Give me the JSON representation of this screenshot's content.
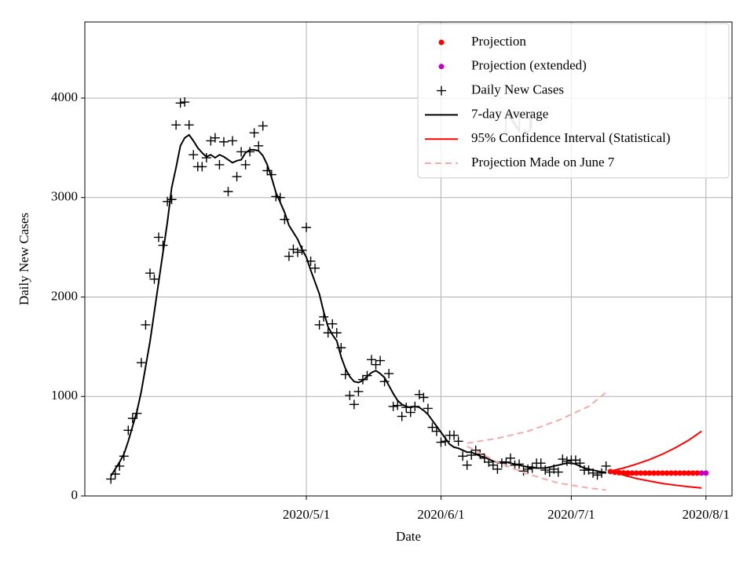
{
  "chart_data": {
    "type": "scatter",
    "xlabel": "Date",
    "ylabel": "Daily New Cases",
    "annotation": "NJ",
    "xlim": [
      "2020/3/11",
      "2020/8/7"
    ],
    "ylim": [
      0,
      4765
    ],
    "xticks": [
      "2020/5/1",
      "2020/6/1",
      "2020/7/1",
      "2020/8/1"
    ],
    "yticks": [
      0,
      1000,
      2000,
      3000,
      4000
    ],
    "grid": true,
    "legend": "upper right",
    "series": [
      {
        "name": "Projection",
        "color": "#ff0000",
        "marker": "o",
        "linestyle": "none",
        "x": [
          "2020/7/10",
          "2020/7/11",
          "2020/7/12",
          "2020/7/13",
          "2020/7/14",
          "2020/7/15",
          "2020/7/16",
          "2020/7/17",
          "2020/7/18",
          "2020/7/19",
          "2020/7/20",
          "2020/7/21",
          "2020/7/22",
          "2020/7/23",
          "2020/7/24",
          "2020/7/25",
          "2020/7/26",
          "2020/7/27",
          "2020/7/28",
          "2020/7/29",
          "2020/7/30"
        ],
        "values": [
          245,
          238,
          234,
          232,
          231,
          230,
          230,
          230,
          230,
          230,
          230,
          230,
          230,
          230,
          230,
          230,
          230,
          230,
          230,
          230,
          230
        ]
      },
      {
        "name": "Projection (extended)",
        "color": "#bf00bf",
        "marker": "o",
        "linestyle": "none",
        "x": [
          "2020/7/31",
          "2020/8/1"
        ],
        "values": [
          230,
          230
        ]
      },
      {
        "name": "Daily New Cases",
        "color": "#000000",
        "marker": "+",
        "linestyle": "none",
        "x": [
          "2020/3/17",
          "2020/3/18",
          "2020/3/19",
          "2020/3/20",
          "2020/3/21",
          "2020/3/22",
          "2020/3/23",
          "2020/3/24",
          "2020/3/25",
          "2020/3/26",
          "2020/3/27",
          "2020/3/28",
          "2020/3/29",
          "2020/3/30",
          "2020/3/31",
          "2020/4/1",
          "2020/4/2",
          "2020/4/3",
          "2020/4/4",
          "2020/4/5",
          "2020/4/6",
          "2020/4/7",
          "2020/4/8",
          "2020/4/9",
          "2020/4/10",
          "2020/4/11",
          "2020/4/12",
          "2020/4/13",
          "2020/4/14",
          "2020/4/15",
          "2020/4/16",
          "2020/4/17",
          "2020/4/18",
          "2020/4/19",
          "2020/4/20",
          "2020/4/21",
          "2020/4/22",
          "2020/4/23",
          "2020/4/24",
          "2020/4/25",
          "2020/4/26",
          "2020/4/27",
          "2020/4/28",
          "2020/4/29",
          "2020/4/30",
          "2020/5/1",
          "2020/5/2",
          "2020/5/3",
          "2020/5/4",
          "2020/5/5",
          "2020/5/6",
          "2020/5/7",
          "2020/5/8",
          "2020/5/9",
          "2020/5/10",
          "2020/5/11",
          "2020/5/12",
          "2020/5/13",
          "2020/5/14",
          "2020/5/15",
          "2020/5/16",
          "2020/5/17",
          "2020/5/18",
          "2020/5/19",
          "2020/5/20",
          "2020/5/21",
          "2020/5/22",
          "2020/5/23",
          "2020/5/24",
          "2020/5/25",
          "2020/5/26",
          "2020/5/27",
          "2020/5/28",
          "2020/5/29",
          "2020/5/30",
          "2020/5/31",
          "2020/6/1",
          "2020/6/2",
          "2020/6/3",
          "2020/6/4",
          "2020/6/5",
          "2020/6/6",
          "2020/6/7",
          "2020/6/8",
          "2020/6/9",
          "2020/6/10",
          "2020/6/11",
          "2020/6/12",
          "2020/6/13",
          "2020/6/14",
          "2020/6/15",
          "2020/6/16",
          "2020/6/17",
          "2020/6/18",
          "2020/6/19",
          "2020/6/20",
          "2020/6/21",
          "2020/6/22",
          "2020/6/23",
          "2020/6/24",
          "2020/6/25",
          "2020/6/26",
          "2020/6/27",
          "2020/6/28",
          "2020/6/29",
          "2020/6/30",
          "2020/7/1",
          "2020/7/2",
          "2020/7/3",
          "2020/7/4",
          "2020/7/5",
          "2020/7/6",
          "2020/7/7",
          "2020/7/8",
          "2020/7/9"
        ],
        "values": [
          170,
          220,
          300,
          400,
          660,
          780,
          830,
          1340,
          1720,
          2240,
          2180,
          2600,
          2520,
          2960,
          2980,
          3730,
          3950,
          3960,
          3730,
          3430,
          3310,
          3310,
          3400,
          3570,
          3600,
          3330,
          3560,
          3060,
          3570,
          3210,
          3460,
          3330,
          3460,
          3650,
          3520,
          3720,
          3270,
          3230,
          3010,
          3000,
          2780,
          2410,
          2480,
          2450,
          2470,
          2700,
          2360,
          2290,
          1720,
          1800,
          1640,
          1730,
          1640,
          1490,
          1220,
          1010,
          920,
          1050,
          1170,
          1210,
          1370,
          1320,
          1360,
          1150,
          1230,
          900,
          910,
          800,
          890,
          840,
          900,
          1020,
          990,
          880,
          690,
          650,
          540,
          550,
          610,
          610,
          550,
          400,
          310,
          410,
          460,
          420,
          380,
          340,
          310,
          270,
          330,
          340,
          380,
          310,
          320,
          250,
          270,
          280,
          330,
          330,
          260,
          240,
          270,
          240,
          370,
          350,
          360,
          360,
          330,
          260,
          260,
          230,
          210,
          230,
          300
        ]
      },
      {
        "name": "7-day Average",
        "color": "#000000",
        "marker": "none",
        "linestyle": "-",
        "x": [
          "2020/3/17",
          "2020/3/18",
          "2020/3/19",
          "2020/3/20",
          "2020/3/21",
          "2020/3/22",
          "2020/3/23",
          "2020/3/24",
          "2020/3/25",
          "2020/3/26",
          "2020/3/27",
          "2020/3/28",
          "2020/3/29",
          "2020/3/30",
          "2020/3/31",
          "2020/4/1",
          "2020/4/2",
          "2020/4/3",
          "2020/4/4",
          "2020/4/5",
          "2020/4/6",
          "2020/4/7",
          "2020/4/8",
          "2020/4/9",
          "2020/4/10",
          "2020/4/11",
          "2020/4/12",
          "2020/4/13",
          "2020/4/14",
          "2020/4/15",
          "2020/4/16",
          "2020/4/17",
          "2020/4/18",
          "2020/4/19",
          "2020/4/20",
          "2020/4/21",
          "2020/4/22",
          "2020/4/23",
          "2020/4/24",
          "2020/4/25",
          "2020/4/26",
          "2020/4/27",
          "2020/4/28",
          "2020/4/29",
          "2020/4/30",
          "2020/5/1",
          "2020/5/2",
          "2020/5/3",
          "2020/5/4",
          "2020/5/5",
          "2020/5/6",
          "2020/5/7",
          "2020/5/8",
          "2020/5/9",
          "2020/5/10",
          "2020/5/11",
          "2020/5/12",
          "2020/5/13",
          "2020/5/14",
          "2020/5/15",
          "2020/5/16",
          "2020/5/17",
          "2020/5/18",
          "2020/5/19",
          "2020/5/20",
          "2020/5/21",
          "2020/5/22",
          "2020/5/23",
          "2020/5/24",
          "2020/5/25",
          "2020/5/26",
          "2020/5/27",
          "2020/5/28",
          "2020/5/29",
          "2020/5/30",
          "2020/5/31",
          "2020/6/1",
          "2020/6/2",
          "2020/6/3",
          "2020/6/4",
          "2020/6/5",
          "2020/6/6",
          "2020/6/7",
          "2020/6/8",
          "2020/6/9",
          "2020/6/10",
          "2020/6/11",
          "2020/6/12",
          "2020/6/13",
          "2020/6/14",
          "2020/6/15",
          "2020/6/16",
          "2020/6/17",
          "2020/6/18",
          "2020/6/19",
          "2020/6/20",
          "2020/6/21",
          "2020/6/22",
          "2020/6/23",
          "2020/6/24",
          "2020/6/25",
          "2020/6/26",
          "2020/6/27",
          "2020/6/28",
          "2020/6/29",
          "2020/6/30",
          "2020/7/1",
          "2020/7/2",
          "2020/7/3",
          "2020/7/4",
          "2020/7/5",
          "2020/7/6",
          "2020/7/7",
          "2020/7/8",
          "2020/7/9"
        ],
        "values": [
          200,
          270,
          340,
          420,
          550,
          700,
          850,
          1050,
          1300,
          1550,
          1850,
          2150,
          2450,
          2750,
          3100,
          3300,
          3520,
          3600,
          3630,
          3570,
          3500,
          3450,
          3410,
          3430,
          3400,
          3430,
          3410,
          3380,
          3350,
          3370,
          3380,
          3450,
          3480,
          3480,
          3470,
          3420,
          3330,
          3200,
          3050,
          2950,
          2850,
          2720,
          2650,
          2580,
          2480,
          2400,
          2270,
          2150,
          2030,
          1850,
          1700,
          1620,
          1560,
          1400,
          1280,
          1200,
          1150,
          1140,
          1160,
          1200,
          1240,
          1260,
          1230,
          1190,
          1110,
          1030,
          960,
          920,
          900,
          890,
          900,
          890,
          860,
          820,
          760,
          700,
          640,
          580,
          520,
          490,
          480,
          460,
          440,
          440,
          420,
          400,
          390,
          370,
          350,
          340,
          340,
          340,
          330,
          320,
          310,
          300,
          290,
          290,
          280,
          280,
          280,
          290,
          300,
          310,
          320,
          330,
          330,
          320,
          300,
          280,
          270,
          260,
          250,
          240,
          240
        ]
      },
      {
        "name": "95% Confidence Interval (Statistical)",
        "color": "#ff0000",
        "marker": "none",
        "linestyle": "-",
        "x": [
          "2020/7/10",
          "2020/7/13",
          "2020/7/16",
          "2020/7/19",
          "2020/7/22",
          "2020/7/25",
          "2020/7/28",
          "2020/7/31"
        ],
        "upper": [
          250,
          280,
          320,
          365,
          420,
          485,
          560,
          650
        ],
        "lower": [
          250,
          210,
          175,
          150,
          125,
          108,
          93,
          80
        ]
      },
      {
        "name": "Projection Made on June 7",
        "color": "#f4aaaa",
        "marker": "none",
        "linestyle": "--",
        "x": [
          "2020/6/7",
          "2020/6/14",
          "2020/6/21",
          "2020/6/28",
          "2020/7/5",
          "2020/7/9"
        ],
        "upper": [
          530,
          580,
          650,
          760,
          900,
          1040
        ],
        "lower": [
          500,
          340,
          220,
          130,
          80,
          60
        ]
      }
    ]
  }
}
